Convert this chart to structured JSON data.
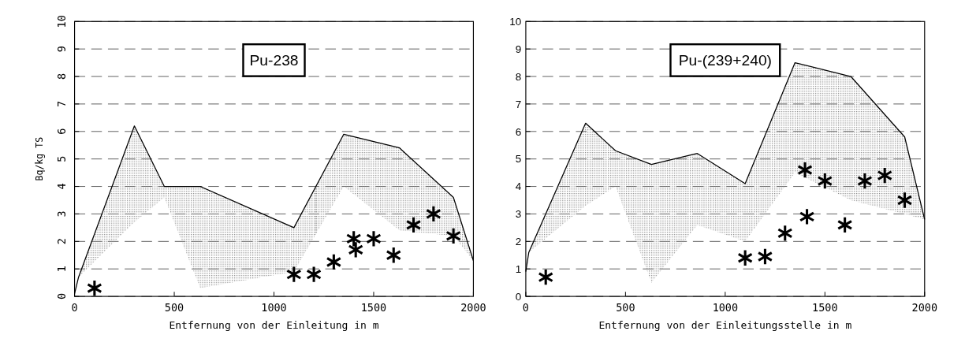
{
  "chart_data": [
    {
      "type": "line",
      "annotations": [
        "Pu-238"
      ],
      "xlabel": "Entfernung von der Einleitung in m",
      "ylabel": "Bq/kg TS",
      "xlim": [
        0,
        2000
      ],
      "xticks": [
        0,
        500,
        1000,
        1500,
        2000
      ],
      "ylim": [
        0,
        10
      ],
      "yticks": [
        0,
        1,
        2,
        3,
        4,
        5,
        6,
        7,
        8,
        9,
        10
      ],
      "grid": "y",
      "series": [
        {
          "color": "#000000",
          "x": [
            0,
            20,
            300,
            450,
            630,
            1100,
            1350,
            1630,
            1900,
            2000
          ],
          "values": [
            0.1,
            0.7,
            6.2,
            4.0,
            4.0,
            2.5,
            5.9,
            5.4,
            3.6,
            1.3
          ],
          "lower": [
            0.1,
            0.7,
            2.7,
            3.6,
            0.3,
            0.9,
            4.0,
            2.4,
            2.2,
            1.3
          ],
          "upper": [
            0.1,
            0.7,
            6.2,
            4.0,
            4.0,
            2.5,
            5.9,
            5.4,
            3.6,
            1.3
          ]
        },
        {
          "type": "scatter",
          "color": "#000000",
          "marker": "cross",
          "x": [
            100,
            1100,
            1200,
            1300,
            1400,
            1410,
            1500,
            1600,
            1700,
            1800,
            1900
          ],
          "values": [
            0.3,
            0.8,
            0.8,
            1.25,
            2.1,
            1.7,
            2.1,
            1.5,
            2.6,
            3.0,
            2.2
          ]
        }
      ]
    },
    {
      "type": "line",
      "annotations": [
        "Pu-(239+240)"
      ],
      "xlabel": "Entfernung von der Einleitungsstelle in m",
      "xlim": [
        0,
        2000
      ],
      "xticks": [
        0,
        500,
        1000,
        1500,
        2000
      ],
      "ylim": [
        0,
        10
      ],
      "yticks": [
        0,
        1,
        2,
        3,
        4,
        5,
        6,
        7,
        8,
        9,
        10
      ],
      "grid": "y",
      "series": [
        {
          "color": "#000000",
          "x": [
            0,
            15,
            300,
            450,
            630,
            860,
            1100,
            1350,
            1630,
            1900,
            2000
          ],
          "values": [
            0.9,
            1.6,
            6.3,
            5.3,
            4.8,
            5.2,
            4.1,
            8.5,
            8.0,
            5.8,
            2.8
          ],
          "lower": [
            0.9,
            1.6,
            3.3,
            4.0,
            0.5,
            2.6,
            2.0,
            4.5,
            3.5,
            3.0,
            2.8
          ],
          "upper": [
            0.9,
            1.6,
            6.3,
            5.3,
            4.8,
            5.2,
            4.1,
            8.5,
            8.0,
            5.8,
            2.8
          ]
        },
        {
          "type": "scatter",
          "color": "#000000",
          "marker": "cross",
          "x": [
            100,
            1100,
            1200,
            1300,
            1400,
            1410,
            1500,
            1600,
            1700,
            1800,
            1900
          ],
          "values": [
            0.7,
            1.4,
            1.45,
            2.3,
            4.6,
            2.9,
            4.2,
            2.6,
            4.2,
            4.4,
            3.5
          ]
        }
      ]
    }
  ]
}
